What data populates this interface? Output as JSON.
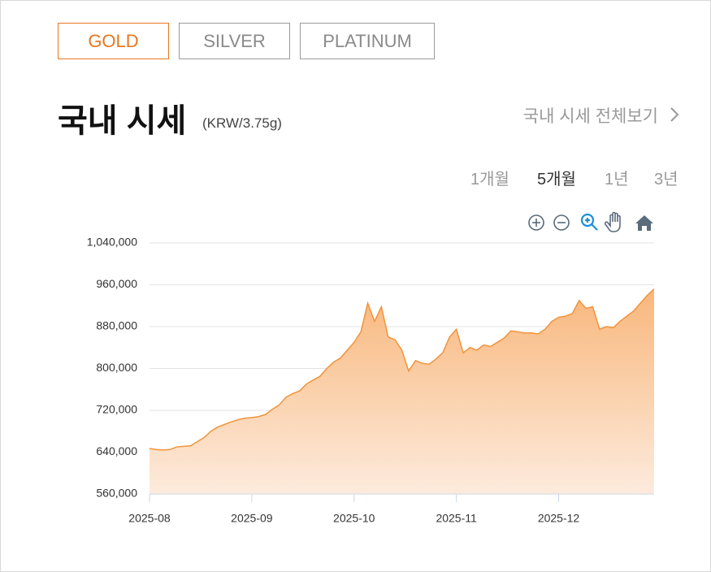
{
  "tabs": [
    "GOLD",
    "SILVER",
    "PLATINUM"
  ],
  "header": {
    "title": "국내 시세",
    "unit": "(KRW/3.75g)",
    "link": "국내 시세 전체보기"
  },
  "periods": [
    "1개월",
    "5개월",
    "1년",
    "3년"
  ],
  "chart_data": {
    "type": "area",
    "color": "#f0943a",
    "grid": true,
    "categories": [
      "2025-08",
      null,
      null,
      null,
      null,
      null,
      null,
      null,
      null,
      null,
      null,
      null,
      null,
      null,
      null,
      "2025-09",
      null,
      null,
      null,
      null,
      null,
      null,
      null,
      null,
      null,
      null,
      null,
      null,
      null,
      null,
      "2025-10",
      null,
      null,
      null,
      null,
      null,
      null,
      null,
      null,
      null,
      null,
      null,
      null,
      null,
      null,
      "2025-11",
      null,
      null,
      null,
      null,
      null,
      null,
      null,
      null,
      null,
      null,
      null,
      null,
      null,
      null,
      "2025-12",
      null,
      null,
      null,
      null,
      null,
      null,
      null,
      null,
      null,
      null,
      null,
      null,
      null,
      null
    ],
    "values": [
      647000,
      645000,
      644000,
      645000,
      650000,
      651000,
      652000,
      660000,
      668000,
      680000,
      688000,
      693000,
      698000,
      702000,
      705000,
      706000,
      708000,
      712000,
      722000,
      730000,
      745000,
      752000,
      757000,
      770000,
      778000,
      785000,
      800000,
      812000,
      820000,
      835000,
      850000,
      870000,
      925000,
      890000,
      918000,
      860000,
      855000,
      835000,
      795000,
      815000,
      810000,
      808000,
      818000,
      830000,
      860000,
      875000,
      830000,
      840000,
      835000,
      845000,
      842000,
      850000,
      858000,
      872000,
      870000,
      868000,
      868000,
      866000,
      875000,
      890000,
      898000,
      900000,
      905000,
      930000,
      915000,
      918000,
      875000,
      880000,
      878000,
      890000,
      900000,
      910000,
      925000,
      940000,
      952000
    ],
    "ylim": [
      560000,
      1040000
    ],
    "yticks": [
      {
        "value": 560000,
        "label": "560,000"
      },
      {
        "value": 640000,
        "label": "640,000"
      },
      {
        "value": 720000,
        "label": "720,000"
      },
      {
        "value": 800000,
        "label": "800,000"
      },
      {
        "value": 880000,
        "label": "880,000"
      },
      {
        "value": 960000,
        "label": "960,000"
      },
      {
        "value": 1040000,
        "label": "1,040,000"
      }
    ]
  }
}
